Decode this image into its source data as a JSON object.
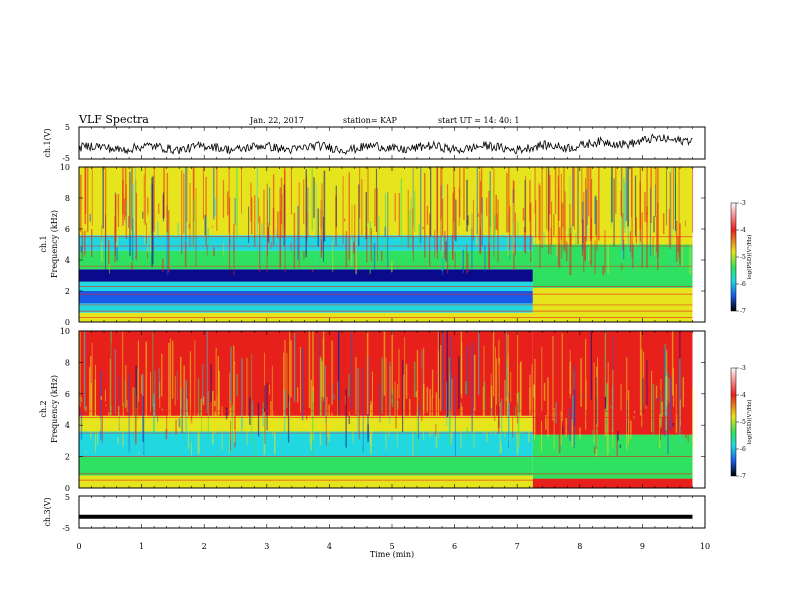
{
  "header": {
    "title": "VLF Spectra",
    "date": "Jan. 22, 2017",
    "station": "station= KAP",
    "start": "start  UT =   14: 40: 1"
  },
  "panels": {
    "ch1_wave": {
      "ylabel": "ch.1(V)",
      "yticks": [
        "5",
        "-5"
      ]
    },
    "ch1_spec": {
      "ylabel_line1": "ch.1",
      "ylabel_line2": "Frequency (kHz)",
      "yticks": [
        "10",
        "8",
        "6",
        "4",
        "2",
        "0"
      ]
    },
    "ch2_spec": {
      "ylabel_line1": "ch.2",
      "ylabel_line2": "Frequency (kHz)",
      "yticks": [
        "10",
        "8",
        "6",
        "4",
        "2",
        "0"
      ]
    },
    "ch3_wave": {
      "ylabel": "ch.3(V)",
      "yticks": [
        "5",
        "-5"
      ]
    }
  },
  "colorbar": {
    "label": "log(PSD)(V²/Hz)",
    "ticks": [
      "-3",
      "-4",
      "-5",
      "-6",
      "-7"
    ]
  },
  "xaxis": {
    "label": "Time (min)",
    "ticks": [
      "0",
      "1",
      "2",
      "3",
      "4",
      "5",
      "6",
      "7",
      "8",
      "9",
      "10"
    ]
  },
  "colors": {
    "spec_red": "#e8201c",
    "spec_yellow": "#e6e41c",
    "spec_green": "#30e060",
    "spec_cyan": "#22d8e0",
    "spec_blue": "#1a5ae8",
    "spec_navy": "#0a0a8c"
  },
  "chart_data": {
    "type": "heatmap",
    "title": "VLF Spectra",
    "xlabel": "Time (min)",
    "xlim": [
      0,
      10
    ],
    "data_end_min": 9.8,
    "transition_min": 7.25,
    "series": [
      {
        "name": "ch.1(V)",
        "kind": "waveform",
        "ylim": [
          -5,
          5
        ],
        "baseline_v": -1.5,
        "late_baseline_v": 1.5
      },
      {
        "name": "ch.1",
        "kind": "spectrogram",
        "ylabel": "Frequency (kHz)",
        "ylim": [
          0,
          10
        ],
        "bands_khz": [
          {
            "from": 0.0,
            "to": 0.6,
            "level": "yellow"
          },
          {
            "from": 0.6,
            "to": 1.2,
            "level": "cyan"
          },
          {
            "from": 1.2,
            "to": 2.0,
            "level": "blue"
          },
          {
            "from": 2.0,
            "to": 2.6,
            "level": "cyan"
          },
          {
            "from": 2.6,
            "to": 3.4,
            "level": "navy"
          },
          {
            "from": 3.4,
            "to": 4.6,
            "level": "green"
          },
          {
            "from": 4.6,
            "to": 5.6,
            "level": "cyan"
          },
          {
            "from": 5.6,
            "to": 10.0,
            "level": "yellow"
          }
        ],
        "late_bands_khz": [
          {
            "from": 0.0,
            "to": 2.2,
            "level": "yellow"
          },
          {
            "from": 2.2,
            "to": 5.0,
            "level": "green"
          },
          {
            "from": 5.0,
            "to": 10.0,
            "level": "yellow"
          }
        ]
      },
      {
        "name": "ch.2",
        "kind": "spectrogram",
        "ylabel": "Frequency (kHz)",
        "ylim": [
          0,
          10
        ],
        "bands_khz": [
          {
            "from": 0.0,
            "to": 0.8,
            "level": "yellow"
          },
          {
            "from": 0.8,
            "to": 2.0,
            "level": "green"
          },
          {
            "from": 2.0,
            "to": 3.6,
            "level": "cyan"
          },
          {
            "from": 3.6,
            "to": 4.6,
            "level": "yellow"
          },
          {
            "from": 4.6,
            "to": 10.0,
            "level": "red"
          }
        ],
        "late_bands_khz": [
          {
            "from": 0.0,
            "to": 0.6,
            "level": "red"
          },
          {
            "from": 0.6,
            "to": 3.4,
            "level": "green"
          },
          {
            "from": 3.4,
            "to": 10.0,
            "level": "red"
          }
        ]
      },
      {
        "name": "ch.3(V)",
        "kind": "waveform",
        "ylim": [
          -5,
          5
        ],
        "constant_v": -1.5
      }
    ],
    "colorbar": {
      "label": "log(PSD)(V²/Hz)",
      "range": [
        -7,
        -3
      ],
      "colormap": "jet"
    }
  }
}
